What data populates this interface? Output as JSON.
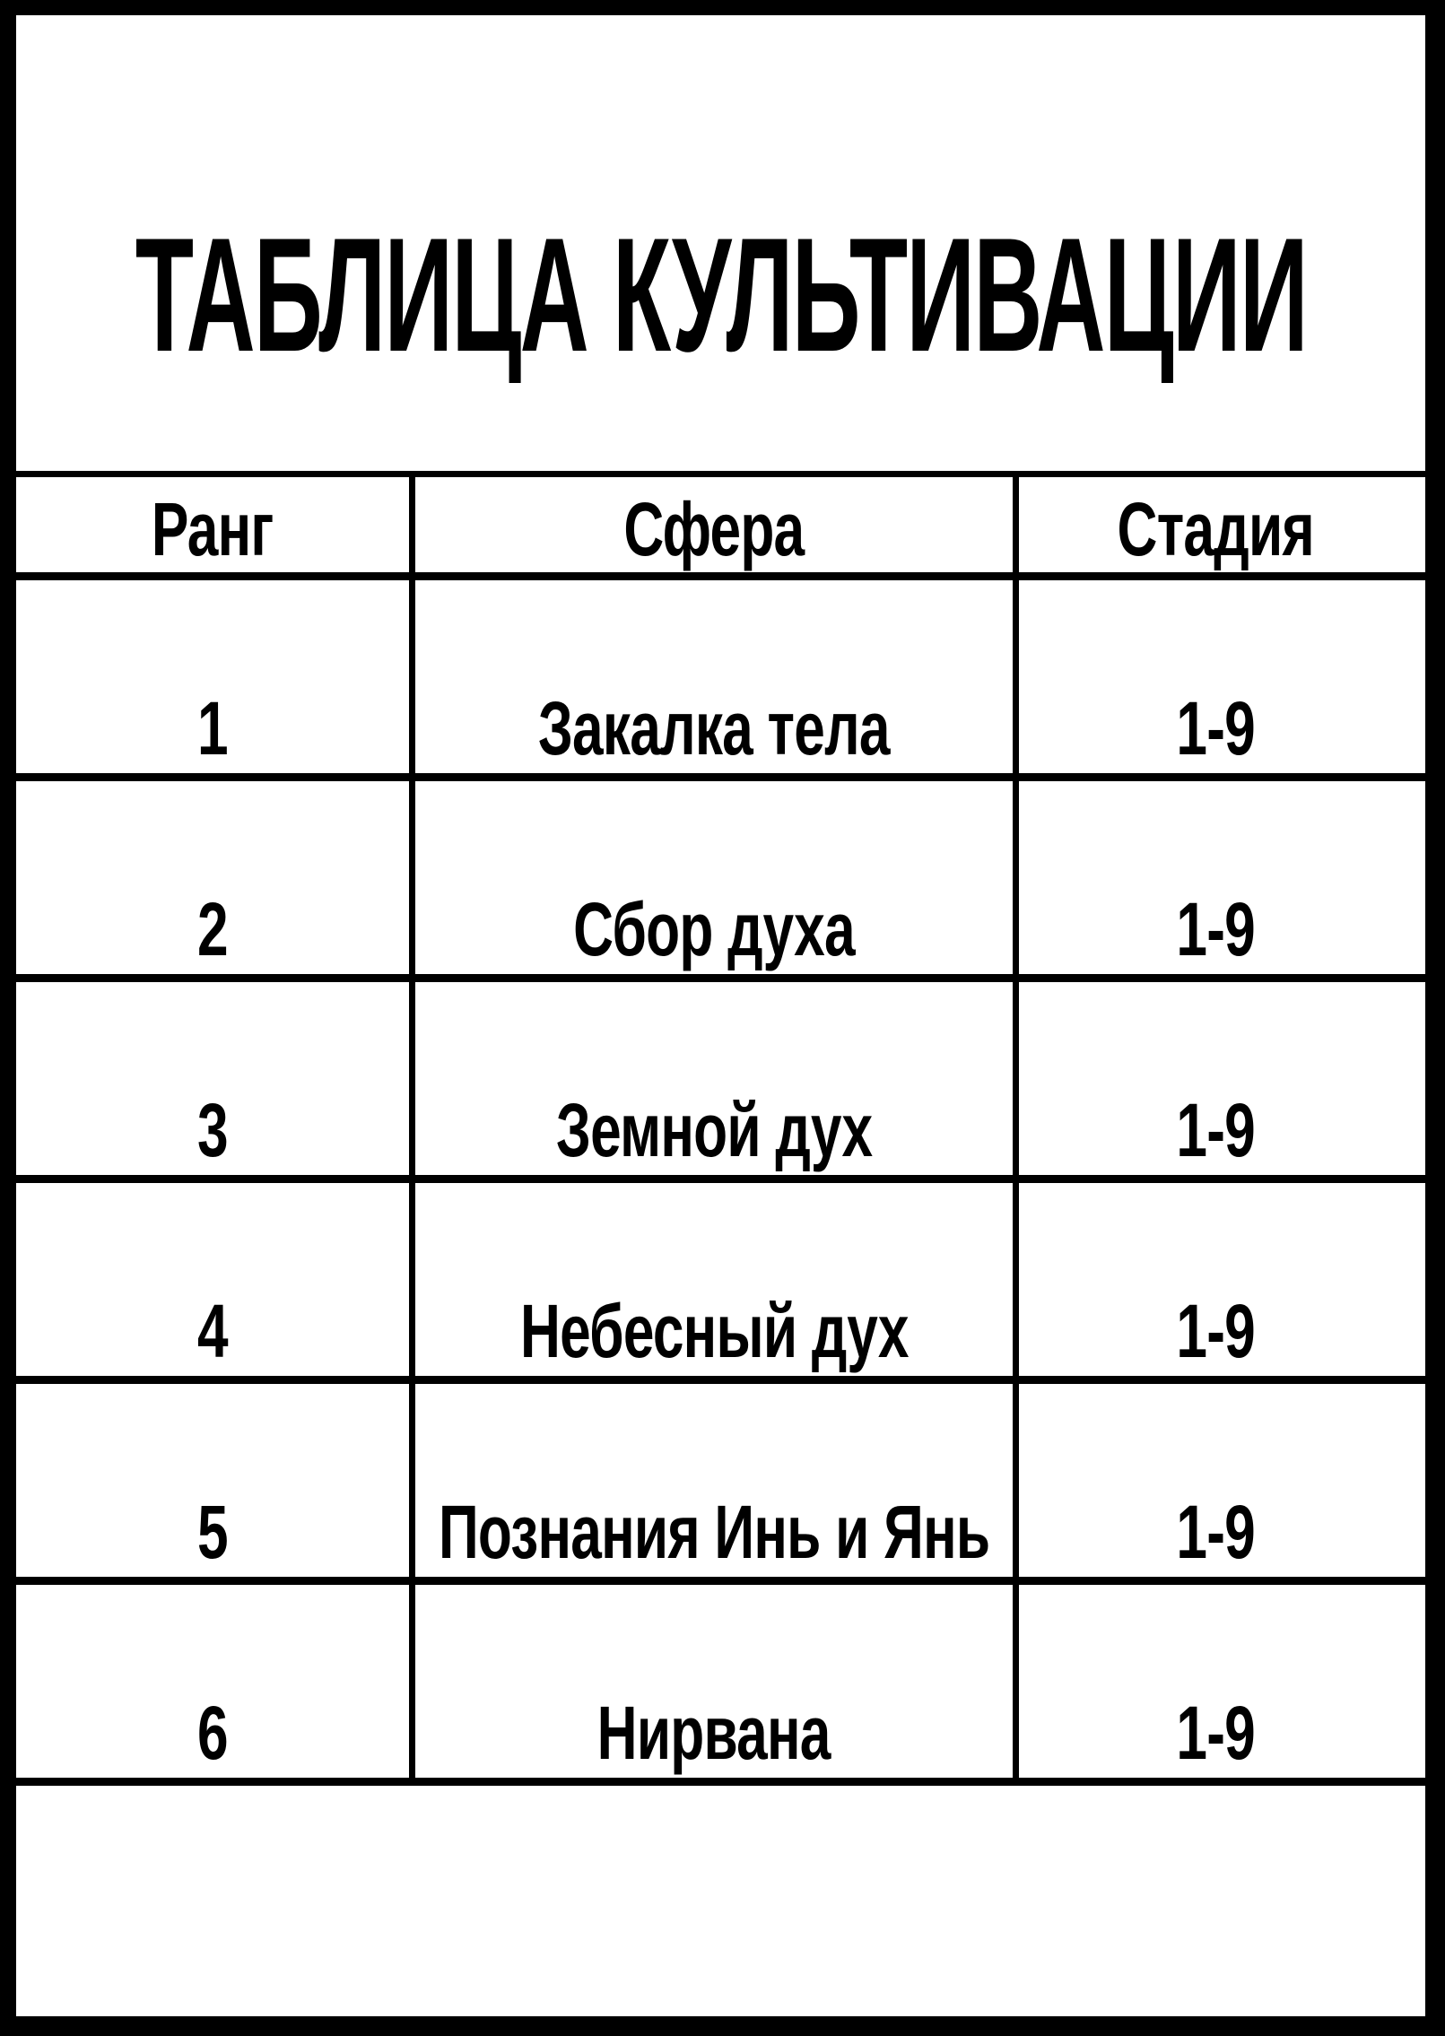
{
  "page": {
    "title": "ТАБЛИЦА КУЛЬТИВАЦИИ"
  },
  "colors": {
    "foreground": "#000000",
    "background": "#ffffff"
  },
  "table": {
    "columns": [
      "Ранг",
      "Сфера",
      "Стадия"
    ],
    "rows": [
      {
        "rank": "1",
        "sphere": "Закалка тела",
        "stage": "1-9"
      },
      {
        "rank": "2",
        "sphere": "Сбор духа",
        "stage": "1-9"
      },
      {
        "rank": "3",
        "sphere": "Земной дух",
        "stage": "1-9"
      },
      {
        "rank": "4",
        "sphere": "Небесный дух",
        "stage": "1-9"
      },
      {
        "rank": "5",
        "sphere": "Познания Инь и Янь",
        "stage": "1-9"
      },
      {
        "rank": "6",
        "sphere": "Нирвана",
        "stage": "1-9"
      }
    ]
  }
}
